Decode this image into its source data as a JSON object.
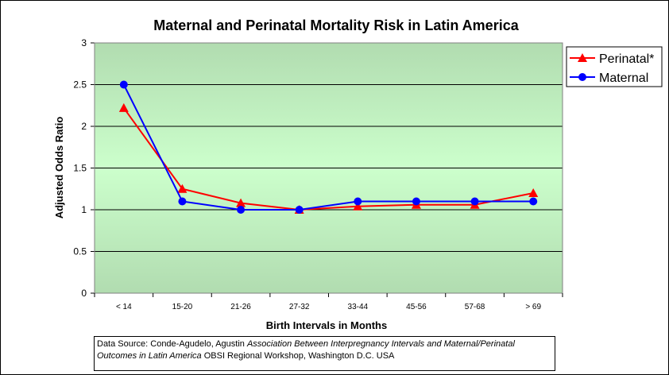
{
  "chart_data": {
    "type": "line",
    "title": "Maternal and Perinatal Mortality Risk in Latin America",
    "xlabel": "Birth Intervals in Months",
    "ylabel": "Adjusted Odds Ratio",
    "ylim": [
      0,
      3
    ],
    "yticks": [
      "0",
      "0.5",
      "1",
      "1.5",
      "2",
      "2.5",
      "3"
    ],
    "categories": [
      "< 14",
      "15-20",
      "21-26",
      "27-32",
      "33-44",
      "45-56",
      "57-68",
      "> 69"
    ],
    "grid": true,
    "legend": "right",
    "background": "green gradient",
    "series": [
      {
        "name": "Perinatal*",
        "color": "#ff0000",
        "marker": "triangle",
        "values": [
          2.22,
          1.25,
          1.08,
          1.0,
          1.04,
          1.06,
          1.06,
          1.2
        ]
      },
      {
        "name": "Maternal",
        "color": "#0000ff",
        "marker": "circle",
        "values": [
          2.5,
          1.1,
          1.0,
          1.0,
          1.1,
          1.1,
          1.1,
          1.1
        ]
      }
    ]
  },
  "caption": {
    "prefix": "Data Source: Conde-Agudelo, Agustin ",
    "italic": "Association Between Interpregnancy Intervals and Maternal/Perinatal Outcomes in Latin America",
    "suffix": " OBSI Regional Workshop, Washington D.C. USA"
  }
}
